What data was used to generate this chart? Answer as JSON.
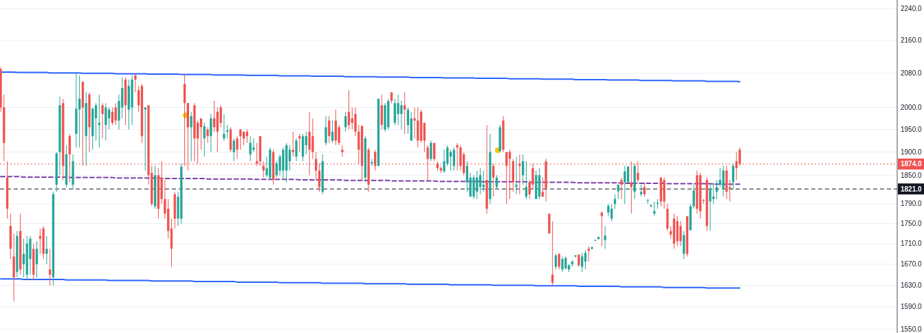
{
  "chart_data": {
    "type": "candlestick",
    "categories": [
      null,
      null,
      null,
      null,
      null,
      null,
      null,
      null,
      null,
      null,
      null,
      null,
      null,
      null,
      null,
      null,
      null,
      null,
      null,
      null,
      null,
      null,
      null,
      null,
      null,
      null,
      null,
      null,
      null,
      null,
      null,
      null,
      null,
      null,
      null,
      null,
      null,
      null,
      null,
      null,
      null,
      null,
      null,
      null,
      null,
      null,
      null,
      null,
      null,
      null,
      null,
      null,
      null,
      null,
      null,
      null,
      null,
      null,
      null,
      null,
      null,
      null,
      null,
      null,
      null,
      null,
      null,
      null,
      null,
      null,
      null,
      null,
      null,
      null,
      null,
      null,
      null,
      null,
      null,
      null,
      null,
      null,
      null,
      null,
      null,
      null,
      null,
      null,
      null,
      null,
      null,
      null,
      null,
      null,
      null,
      null,
      null,
      null,
      null,
      null,
      null,
      null,
      null,
      null,
      null,
      null,
      null,
      null,
      null,
      null,
      null,
      null,
      null,
      null,
      null,
      null,
      null,
      null,
      null,
      null,
      null,
      null,
      null,
      null,
      null,
      null,
      null,
      null,
      null,
      null,
      null,
      null,
      null,
      null,
      null,
      null,
      null,
      null,
      null,
      null,
      null,
      null,
      null,
      null,
      null,
      null,
      null,
      null,
      null,
      null,
      null,
      null,
      null,
      null,
      null,
      null,
      null,
      null,
      null,
      null,
      null,
      null,
      null,
      null,
      null,
      null,
      null,
      null,
      null,
      null,
      null,
      null,
      null,
      null,
      null,
      null,
      null,
      null,
      null,
      null,
      null,
      null,
      null,
      null,
      null,
      null,
      null,
      null,
      null,
      null,
      null,
      null,
      null,
      null,
      null,
      null,
      null,
      null,
      null,
      null,
      null,
      null,
      null,
      null,
      null,
      null,
      null,
      null,
      null,
      null,
      null,
      null,
      null,
      null,
      null,
      null,
      null,
      null,
      null,
      null,
      null,
      null,
      null,
      null,
      null,
      null
    ],
    "ohlc": [
      [
        2090,
        2095,
        1990,
        2000
      ],
      [
        2000,
        2030,
        1880,
        1920
      ],
      [
        1845,
        1880,
        1760,
        1780
      ],
      [
        1745,
        1770,
        1680,
        1700
      ],
      [
        1685,
        1730,
        1600,
        1645
      ],
      [
        1655,
        1735,
        1645,
        1725
      ],
      [
        1735,
        1770,
        1650,
        1660
      ],
      [
        1670,
        1720,
        1645,
        1690
      ],
      [
        1650,
        1725,
        1640,
        1710
      ],
      [
        1680,
        1725,
        1650,
        1720
      ],
      [
        1700,
        1710,
        1640,
        1650
      ],
      [
        1670,
        1715,
        1645,
        1700
      ],
      [
        1725,
        1740,
        1690,
        1720
      ],
      [
        1740,
        1745,
        1680,
        1690
      ],
      [
        1690,
        1725,
        1670,
        1700
      ],
      [
        1660,
        1700,
        1630,
        1650
      ],
      [
        1645,
        1815,
        1630,
        1810
      ],
      [
        1830,
        1900,
        1815,
        1897
      ],
      [
        1900,
        2025,
        1850,
        2005
      ],
      [
        2010,
        2020,
        1840,
        1870
      ],
      [
        1830,
        1915,
        1825,
        1895
      ],
      [
        1935,
        1940,
        1835,
        1895
      ],
      [
        1830,
        1895,
        1820,
        1880
      ],
      [
        1940,
        2080,
        1910,
        1997
      ],
      [
        1995,
        2075,
        1910,
        2020
      ],
      [
        2060,
        2060,
        1870,
        2000
      ],
      [
        1935,
        2035,
        1870,
        2010
      ],
      [
        2030,
        2035,
        1900,
        1955
      ],
      [
        1935,
        2000,
        1905,
        1997
      ],
      [
        1975,
        2010,
        1925,
        2005
      ],
      [
        1960,
        2030,
        1910,
        1965
      ],
      [
        2005,
        2010,
        1930,
        1985
      ],
      [
        1960,
        2010,
        1925,
        2000
      ],
      [
        1975,
        2000,
        1950,
        1995
      ],
      [
        1990,
        2000,
        1960,
        1965
      ],
      [
        2000,
        2010,
        1960,
        1970
      ],
      [
        1970,
        2030,
        1950,
        2015
      ],
      [
        2000,
        2070,
        1975,
        2045
      ],
      [
        2065,
        2070,
        1960,
        2005
      ],
      [
        1995,
        2065,
        1950,
        2050
      ],
      [
        2000,
        2075,
        1960,
        2065
      ],
      [
        2075,
        2080,
        2035,
        2065
      ],
      [
        2040,
        2050,
        1990,
        2005
      ],
      [
        2050,
        2055,
        1920,
        1935
      ],
      [
        1995,
        2000,
        1860,
        2000
      ],
      [
        2005,
        2005,
        1830,
        1850
      ],
      [
        1855,
        1870,
        1785,
        1790
      ],
      [
        1785,
        1870,
        1780,
        1850
      ],
      [
        1850,
        1865,
        1760,
        1780
      ],
      [
        1845,
        1880,
        1790,
        1800
      ],
      [
        1800,
        1840,
        1760,
        1770
      ],
      [
        1780,
        1800,
        1720,
        1735
      ],
      [
        1740,
        1760,
        1665,
        1700
      ],
      [
        1810,
        1815,
        1740,
        1760
      ],
      [
        1760,
        1815,
        1745,
        1805
      ],
      [
        1760,
        1875,
        1750,
        1868
      ],
      [
        2055,
        2078,
        1870,
        2010
      ],
      [
        2010,
        2010,
        1860,
        1955
      ],
      [
        1955,
        1990,
        1880,
        1980
      ],
      [
        2005,
        2010,
        1880,
        1930
      ],
      [
        1965,
        1970,
        1875,
        1930
      ],
      [
        1975,
        1975,
        1905,
        1955
      ],
      [
        1930,
        1965,
        1890,
        1957
      ],
      [
        1950,
        1955,
        1920,
        1935
      ],
      [
        1935,
        1985,
        1900,
        1975
      ],
      [
        1975,
        2015,
        1945,
        1955
      ],
      [
        1990,
        2000,
        1900,
        1945
      ],
      [
        2000,
        2005,
        1955,
        1965
      ],
      [
        1930,
        1985,
        1925,
        1940
      ],
      [
        1945,
        1960,
        1930,
        1948
      ],
      [
        1950,
        1955,
        1900,
        1905
      ],
      [
        1900,
        1930,
        1880,
        1925
      ],
      [
        1930,
        1935,
        1885,
        1905
      ],
      [
        1950,
        1950,
        1905,
        1935
      ],
      [
        1945,
        1945,
        1915,
        1930
      ],
      [
        1945,
        1950,
        1920,
        1935
      ],
      [
        1895,
        1935,
        1880,
        1920
      ],
      [
        1905,
        1930,
        1900,
        1910
      ],
      [
        1880,
        1920,
        1870,
        1875
      ],
      [
        1935,
        1935,
        1870,
        1880
      ],
      [
        1870,
        1880,
        1845,
        1860
      ],
      [
        1850,
        1890,
        1845,
        1865
      ],
      [
        1845,
        1910,
        1840,
        1905
      ],
      [
        1900,
        1905,
        1830,
        1840
      ],
      [
        1850,
        1880,
        1845,
        1875
      ],
      [
        1860,
        1895,
        1850,
        1890
      ],
      [
        1860,
        1910,
        1840,
        1905
      ],
      [
        1860,
        1920,
        1835,
        1915
      ],
      [
        1880,
        1915,
        1860,
        1905
      ],
      [
        1905,
        1945,
        1890,
        1900
      ],
      [
        1890,
        1930,
        1880,
        1925
      ],
      [
        1935,
        1940,
        1900,
        1930
      ],
      [
        1890,
        1940,
        1880,
        1935
      ],
      [
        1915,
        1945,
        1895,
        1935
      ],
      [
        1945,
        1990,
        1850,
        1905
      ],
      [
        1935,
        1975,
        1885,
        1900
      ],
      [
        1885,
        1900,
        1840,
        1860
      ],
      [
        1860,
        1875,
        1815,
        1825
      ],
      [
        1815,
        1895,
        1810,
        1880
      ],
      [
        1920,
        1980,
        1915,
        1955
      ],
      [
        1970,
        1980,
        1920,
        1935
      ],
      [
        1925,
        1970,
        1920,
        1945
      ],
      [
        1970,
        1995,
        1915,
        1925
      ],
      [
        1955,
        1960,
        1915,
        1920
      ],
      [
        1905,
        1915,
        1890,
        1900
      ],
      [
        1955,
        1990,
        1945,
        1980
      ],
      [
        1990,
        2040,
        1950,
        1960
      ],
      [
        1975,
        2000,
        1950,
        1965
      ],
      [
        1985,
        2000,
        1935,
        1945
      ],
      [
        1945,
        1960,
        1875,
        1905
      ],
      [
        1958,
        1958,
        1840,
        1870
      ],
      [
        1845,
        1935,
        1835,
        1930
      ],
      [
        1905,
        1910,
        1815,
        1830
      ],
      [
        1875,
        1885,
        1870,
        1878
      ],
      [
        1900,
        1905,
        1860,
        1870
      ],
      [
        1870,
        2020,
        1870,
        2020
      ],
      [
        2005,
        2030,
        1950,
        1960
      ],
      [
        1950,
        2010,
        1945,
        2005
      ],
      [
        1955,
        2020,
        1950,
        2015
      ],
      [
        2035,
        2035,
        2010,
        2015
      ],
      [
        1965,
        2020,
        1960,
        2010
      ],
      [
        1985,
        2030,
        1960,
        2010
      ],
      [
        1985,
        2015,
        1950,
        2005
      ],
      [
        2005,
        2035,
        1940,
        1995
      ],
      [
        1960,
        2000,
        1940,
        1995
      ],
      [
        1925,
        1990,
        1925,
        1975
      ],
      [
        1975,
        2000,
        1930,
        1970
      ],
      [
        1970,
        2000,
        1910,
        1925
      ],
      [
        1990,
        1995,
        1920,
        1925
      ],
      [
        1965,
        1965,
        1900,
        1925
      ],
      [
        1910,
        1915,
        1840,
        1885
      ],
      [
        1885,
        1925,
        1880,
        1920
      ],
      [
        1920,
        1920,
        1880,
        1885
      ],
      [
        1875,
        1880,
        1860,
        1865
      ],
      [
        1865,
        1870,
        1855,
        1860
      ],
      [
        1858,
        1905,
        1855,
        1880
      ],
      [
        1875,
        1915,
        1870,
        1910
      ],
      [
        1890,
        1905,
        1860,
        1900
      ],
      [
        1870,
        1910,
        1860,
        1905
      ],
      [
        1915,
        1920,
        1860,
        1910
      ],
      [
        1910,
        1915,
        1860,
        1870
      ],
      [
        1895,
        1900,
        1850,
        1855
      ],
      [
        1835,
        1880,
        1815,
        1870
      ],
      [
        1805,
        1855,
        1805,
        1845
      ],
      [
        1805,
        1850,
        1800,
        1845
      ],
      [
        1815,
        1860,
        1800,
        1845
      ],
      [
        1825,
        1865,
        1810,
        1850
      ],
      [
        1825,
        1860,
        1815,
        1830
      ],
      [
        1840,
        1960,
        1770,
        1780
      ],
      [
        1800,
        1940,
        1790,
        1900
      ],
      [
        1870,
        1875,
        1805,
        1845
      ],
      [
        1825,
        1850,
        1820,
        1845
      ],
      [
        1902,
        1960,
        1900,
        1955
      ],
      [
        1970,
        1980,
        1900,
        1905
      ],
      [
        1900,
        1900,
        1790,
        1870
      ],
      [
        1900,
        1905,
        1800,
        1885
      ],
      [
        1880,
        1885,
        1815,
        1835
      ],
      [
        1825,
        1890,
        1810,
        1830
      ],
      [
        1875,
        1895,
        1810,
        1870
      ],
      [
        1850,
        1895,
        1830,
        1880
      ],
      [
        1805,
        1880,
        1800,
        1825
      ],
      [
        1835,
        1840,
        1800,
        1810
      ],
      [
        1865,
        1875,
        1820,
        1830
      ],
      [
        1800,
        1860,
        1800,
        1850
      ],
      [
        1805,
        1865,
        1800,
        1850
      ],
      [
        1815,
        1845,
        1805,
        1805
      ],
      [
        1880,
        1885,
        1795,
        1822
      ],
      [
        1770,
        1770,
        1730,
        1730
      ],
      [
        1650,
        1755,
        1628,
        1635
      ],
      [
        1665,
        1690,
        1660,
        1687
      ],
      [
        1690,
        1690,
        1660,
        1665
      ],
      [
        1660,
        1685,
        1655,
        1680
      ],
      [
        1662,
        1685,
        1660,
        1682
      ],
      [
        1660,
        1670,
        1655,
        1668
      ],
      [
        1670,
        1678,
        1665,
        1675
      ],
      [
        1685,
        1688,
        1683,
        1687
      ],
      [
        1688,
        1690,
        1665,
        1668
      ],
      [
        1665,
        1692,
        1655,
        1685
      ],
      [
        1675,
        1697,
        1660,
        1692
      ],
      [
        1700,
        1705,
        1675,
        1696
      ],
      [
        1700,
        1704,
        1698,
        1703
      ],
      [
        1716,
        1718,
        1715,
        1717
      ],
      [
        1719,
        1724,
        1718,
        1723
      ],
      [
        1772,
        1775,
        1705,
        1765
      ],
      [
        1717,
        1745,
        1700,
        1726
      ],
      [
        1772,
        1790,
        1765,
        1786
      ],
      [
        1760,
        1790,
        1755,
        1780
      ],
      [
        1790,
        1810,
        1780,
        1800
      ],
      [
        1816,
        1830,
        1800,
        1830
      ],
      [
        1840,
        1845,
        1800,
        1830
      ],
      [
        1835,
        1870,
        1790,
        1858
      ],
      [
        1835,
        1870,
        1835,
        1868
      ],
      [
        1835,
        1880,
        1770,
        1825
      ],
      [
        1815,
        1875,
        1800,
        1870
      ],
      [
        1855,
        1880,
        1835,
        1840
      ],
      [
        1810,
        1830,
        1805,
        1815
      ],
      [
        1825,
        1835,
        1805,
        1810
      ],
      [
        1797,
        1800,
        1790,
        1798
      ],
      [
        1785,
        1790,
        1783,
        1787
      ],
      [
        1770,
        1795,
        1765,
        1775
      ],
      [
        1790,
        1800,
        1780,
        1792
      ],
      [
        1845,
        1845,
        1785,
        1795
      ],
      [
        1840,
        1845,
        1780,
        1795
      ],
      [
        1780,
        1790,
        1735,
        1740
      ],
      [
        1735,
        1745,
        1720,
        1728
      ],
      [
        1760,
        1770,
        1700,
        1710
      ],
      [
        1755,
        1765,
        1705,
        1715
      ],
      [
        1745,
        1755,
        1705,
        1715
      ],
      [
        1690,
        1735,
        1680,
        1727
      ],
      [
        1765,
        1765,
        1685,
        1690
      ],
      [
        1737,
        1790,
        1735,
        1785
      ],
      [
        1785,
        1830,
        1780,
        1818
      ],
      [
        1850,
        1860,
        1770,
        1780
      ],
      [
        1850,
        1855,
        1760,
        1775
      ],
      [
        1798,
        1800,
        1790,
        1797
      ],
      [
        1840,
        1845,
        1735,
        1745
      ],
      [
        1795,
        1830,
        1735,
        1820
      ],
      [
        1800,
        1835,
        1790,
        1805
      ],
      [
        1815,
        1840,
        1800,
        1825
      ],
      [
        1830,
        1865,
        1825,
        1840
      ],
      [
        1820,
        1870,
        1805,
        1860
      ],
      [
        1860,
        1870,
        1800,
        1815
      ],
      [
        1825,
        1840,
        1795,
        1822
      ],
      [
        1835,
        1875,
        1820,
        1870
      ],
      [
        1880,
        1900,
        1840,
        1865
      ],
      [
        1905,
        1910,
        1870,
        1874
      ]
    ],
    "colors": [
      "#ef5350",
      "#ef5350",
      "#ef5350",
      "#ef5350",
      "#ef5350",
      "#26a69a",
      "#ef5350",
      "#26a69a",
      "#26a69a",
      "#26a69a",
      "#ef5350",
      "#26a69a",
      "#ef5350",
      "#ef5350",
      "#26a69a",
      "#ef5350",
      "#26a69a",
      "#26a69a",
      "#26a69a",
      "#ef5350",
      "#26a69a",
      "#ef5350",
      "#26a69a",
      "#26a69a",
      "#26a69a",
      "#ef5350",
      "#26a69a",
      "#ef5350",
      "#26a69a",
      "#26a69a",
      "#26a69a",
      "#ef5350",
      "#26a69a",
      "#26a69a",
      "#ef5350",
      "#ef5350",
      "#26a69a",
      "#26a69a",
      "#ef5350",
      "#26a69a",
      "#26a69a",
      "#ef5350",
      "#ef5350",
      "#ef5350",
      "#26a69a",
      "#ef5350",
      "#ef5350",
      "#26a69a",
      "#ef5350",
      "#ef5350",
      "#ef5350",
      "#ef5350",
      "#ef5350",
      "#ef5350",
      "#26a69a",
      "#26a69a",
      "#ef5350",
      "#ef5350",
      "#26a69a",
      "#ef5350",
      "#ef5350",
      "#ef5350",
      "#26a69a",
      "#ef5350",
      "#26a69a",
      "#ef5350",
      "#ef5350",
      "#ef5350",
      "#26a69a",
      "#26a69a",
      "#ef5350",
      "#26a69a",
      "#ef5350",
      "#ef5350",
      "#ef5350",
      "#ef5350",
      "#26a69a",
      "#26a69a",
      "#ef5350",
      "#ef5350",
      "#ef5350",
      "#26a69a",
      "#26a69a",
      "#ef5350",
      "#26a69a",
      "#26a69a",
      "#26a69a",
      "#26a69a",
      "#26a69a",
      "#ef5350",
      "#26a69a",
      "#ef5350",
      "#26a69a",
      "#26a69a",
      "#ef5350",
      "#ef5350",
      "#ef5350",
      "#ef5350",
      "#26a69a",
      "#26a69a",
      "#ef5350",
      "#26a69a",
      "#ef5350",
      "#ef5350",
      "#ef5350",
      "#26a69a",
      "#ef5350",
      "#ef5350",
      "#ef5350",
      "#ef5350",
      "#ef5350",
      "#26a69a",
      "#ef5350",
      "#26a69a",
      "#ef5350",
      "#26a69a",
      "#ef5350",
      "#26a69a",
      "#26a69a",
      "#ef5350",
      "#26a69a",
      "#26a69a",
      "#26a69a",
      "#ef5350",
      "#26a69a",
      "#26a69a",
      "#ef5350",
      "#ef5350",
      "#ef5350",
      "#ef5350",
      "#ef5350",
      "#26a69a",
      "#ef5350",
      "#ef5350",
      "#ef5350",
      "#26a69a",
      "#26a69a",
      "#26a69a",
      "#26a69a",
      "#ef5350",
      "#ef5350",
      "#ef5350",
      "#26a69a",
      "#26a69a",
      "#26a69a",
      "#26a69a",
      "#26a69a",
      "#26a69a",
      "#ef5350",
      "#26a69a",
      "#ef5350",
      "#26a69a",
      "#26a69a",
      "#ef5350",
      "#ef5350",
      "#ef5350",
      "#ef5350",
      "#26a69a",
      "#ef5350",
      "#26a69a",
      "#26a69a",
      "#ef5350",
      "#ef5350",
      "#26a69a",
      "#26a69a",
      "#ef5350",
      "#ef5350",
      "#ef5350",
      "#ef5350",
      "#26a69a",
      "#ef5350",
      "#26a69a",
      "#26a69a",
      "#26a69a",
      "#26a69a",
      "#26a69a",
      "#ef5350",
      "#26a69a",
      "#26a69a",
      "#ef5350",
      "#26a69a",
      "#26a69a",
      "#26a69a",
      "#ef5350",
      "#26a69a",
      "#26a69a",
      "#26a69a",
      "#26a69a",
      "#26a69a",
      "#ef5350",
      "#26a69a",
      "#26a69a",
      "#ef5350",
      "#26a69a",
      "#ef5350",
      "#26a69a",
      "#ef5350",
      "#26a69a",
      "#26a69a",
      "#26a69a",
      "#26a69a",
      "#ef5350",
      "#ef5350",
      "#ef5350",
      "#ef5350",
      "#ef5350",
      "#ef5350",
      "#ef5350",
      "#26a69a",
      "#ef5350",
      "#26a69a",
      "#26a69a",
      "#ef5350",
      "#ef5350",
      "#ef5350",
      "#ef5350",
      "#26a69a",
      "#26a69a",
      "#26a69a",
      "#26a69a",
      "#26a69a",
      "#ef5350",
      "#ef5350",
      "#26a69a",
      "#ef5350",
      "#ef5350"
    ],
    "series": [
      {
        "type": "line",
        "color": "#2962ff",
        "values": [
          2083,
          2083,
          2083,
          2083,
          2083,
          2082,
          2082,
          2082,
          2082,
          2082,
          2082,
          2082,
          2082,
          2082,
          2082,
          2081,
          2081,
          2081,
          2081,
          2081,
          2081,
          2081,
          2081,
          2081,
          2081,
          2080,
          2080,
          2080,
          2080,
          2080,
          2080,
          2080,
          2080,
          2080,
          2080,
          2079,
          2079,
          2079,
          2079,
          2079,
          2079,
          2079,
          2079,
          2079,
          2079,
          2078,
          2078,
          2078,
          2078,
          2078,
          2078,
          2078,
          2078,
          2078,
          2078,
          2077,
          2077,
          2077,
          2077,
          2077,
          2077,
          2077,
          2077,
          2077,
          2077,
          2076,
          2076,
          2076,
          2076,
          2076,
          2076,
          2076,
          2076,
          2076,
          2076,
          2075,
          2075,
          2075,
          2075,
          2075,
          2075,
          2075,
          2075,
          2075,
          2075,
          2074,
          2074,
          2074,
          2074,
          2074,
          2074,
          2074,
          2074,
          2074,
          2074,
          2073,
          2073,
          2073,
          2073,
          2073,
          2073,
          2073,
          2073,
          2073,
          2073,
          2072,
          2072,
          2072,
          2072,
          2072,
          2072,
          2072,
          2072,
          2072,
          2072,
          2071,
          2071,
          2071,
          2071,
          2071,
          2071,
          2071,
          2071,
          2071,
          2071,
          2070,
          2070,
          2070,
          2070,
          2070,
          2070,
          2070,
          2070,
          2070,
          2070,
          2069,
          2069,
          2069,
          2069,
          2069,
          2069,
          2069,
          2069,
          2069,
          2069,
          2068,
          2068,
          2068,
          2068,
          2068,
          2068,
          2068,
          2068,
          2068,
          2068,
          2067,
          2067,
          2067,
          2067,
          2067,
          2067,
          2067,
          2067,
          2067,
          2067,
          2066,
          2066,
          2066,
          2066,
          2066,
          2066,
          2066,
          2066,
          2066,
          2066,
          2065,
          2065,
          2065,
          2065,
          2065,
          2065,
          2065,
          2065,
          2065,
          2065,
          2064,
          2064,
          2064,
          2064,
          2064,
          2064,
          2064,
          2064,
          2064,
          2064,
          2063,
          2063,
          2063,
          2063,
          2063,
          2063,
          2063,
          2063,
          2063,
          2063,
          2062,
          2062,
          2062,
          2062,
          2062,
          2062,
          2062,
          2062,
          2062,
          2062,
          2061,
          2061,
          2061,
          2061,
          2061,
          2061,
          2061,
          2061,
          2061,
          2061,
          2060
        ]
      },
      {
        "type": "line",
        "color": "#2962ff",
        "values": [
          1642,
          1642,
          1642,
          1642,
          1642,
          1642,
          1642,
          1641,
          1641,
          1641,
          1641,
          1641,
          1641,
          1641,
          1641,
          1641,
          1641,
          1641,
          1641,
          1641,
          1640,
          1640,
          1640,
          1640,
          1640,
          1640,
          1640,
          1640,
          1640,
          1640,
          1640,
          1640,
          1640,
          1639,
          1639,
          1639,
          1639,
          1639,
          1639,
          1639,
          1639,
          1639,
          1639,
          1639,
          1639,
          1639,
          1638,
          1638,
          1638,
          1638,
          1638,
          1638,
          1638,
          1638,
          1638,
          1638,
          1638,
          1638,
          1638,
          1637,
          1637,
          1637,
          1637,
          1637,
          1637,
          1637,
          1637,
          1637,
          1637,
          1637,
          1637,
          1637,
          1636,
          1636,
          1636,
          1636,
          1636,
          1636,
          1636,
          1636,
          1636,
          1636,
          1636,
          1636,
          1636,
          1635,
          1635,
          1635,
          1635,
          1635,
          1635,
          1635,
          1635,
          1635,
          1635,
          1635,
          1635,
          1635,
          1634,
          1634,
          1634,
          1634,
          1634,
          1634,
          1634,
          1634,
          1634,
          1634,
          1634,
          1634,
          1634,
          1633,
          1633,
          1633,
          1633,
          1633,
          1633,
          1633,
          1633,
          1633,
          1633,
          1633,
          1633,
          1633,
          1632,
          1632,
          1632,
          1632,
          1632,
          1632,
          1632,
          1632,
          1632,
          1632,
          1632,
          1632,
          1632,
          1631,
          1631,
          1631,
          1631,
          1631,
          1631,
          1631,
          1631,
          1631,
          1631,
          1631,
          1631,
          1631,
          1630,
          1630,
          1630,
          1630,
          1630,
          1630,
          1630,
          1630,
          1630,
          1630,
          1630,
          1630,
          1630,
          1629,
          1629,
          1629,
          1629,
          1629,
          1629,
          1629,
          1629,
          1629,
          1629,
          1629,
          1629,
          1629,
          1628,
          1628,
          1628,
          1628,
          1628,
          1628,
          1628,
          1628,
          1628,
          1628,
          1628,
          1628,
          1628,
          1627,
          1627,
          1627,
          1627,
          1627,
          1627,
          1627,
          1627,
          1627,
          1627,
          1627,
          1627,
          1627,
          1626,
          1626,
          1626,
          1626,
          1626,
          1626,
          1626,
          1626,
          1626,
          1626,
          1626,
          1626,
          1626,
          1625,
          1625,
          1625,
          1625,
          1625,
          1625,
          1625,
          1625,
          1625,
          1625,
          1625
        ]
      },
      {
        "type": "line",
        "color": "#7b3fa8",
        "line_style": "dashed",
        "values": [
          1847,
          1847,
          1847,
          1847,
          1847,
          1847,
          1847,
          1846,
          1846,
          1846,
          1846,
          1846,
          1846,
          1846,
          1846,
          1846,
          1846,
          1846,
          1846,
          1846,
          1846,
          1845,
          1845,
          1845,
          1845,
          1845,
          1845,
          1845,
          1845,
          1845,
          1845,
          1845,
          1845,
          1845,
          1845,
          1844,
          1844,
          1844,
          1844,
          1844,
          1844,
          1844,
          1844,
          1844,
          1844,
          1844,
          1844,
          1844,
          1844,
          1843,
          1843,
          1843,
          1843,
          1843,
          1843,
          1843,
          1843,
          1843,
          1843,
          1843,
          1843,
          1843,
          1843,
          1842,
          1842,
          1842,
          1842,
          1842,
          1842,
          1842,
          1842,
          1842,
          1842,
          1842,
          1842,
          1842,
          1842,
          1841,
          1841,
          1841,
          1841,
          1841,
          1841,
          1841,
          1841,
          1841,
          1841,
          1841,
          1841,
          1841,
          1841,
          1840,
          1840,
          1840,
          1840,
          1840,
          1840,
          1840,
          1840,
          1840,
          1840,
          1840,
          1840,
          1840,
          1840,
          1839,
          1839,
          1839,
          1839,
          1839,
          1839,
          1839,
          1839,
          1839,
          1839,
          1839,
          1839,
          1839,
          1839,
          1838,
          1838,
          1838,
          1838,
          1838,
          1838,
          1838,
          1838,
          1838,
          1838,
          1838,
          1838,
          1838,
          1838,
          1837,
          1837,
          1837,
          1837,
          1837,
          1837,
          1837,
          1837,
          1837,
          1837,
          1837,
          1837,
          1837,
          1837,
          1836,
          1836,
          1836,
          1836,
          1836,
          1836,
          1836,
          1836,
          1836,
          1836,
          1836,
          1836,
          1836,
          1836,
          1835,
          1835,
          1835,
          1835,
          1835,
          1835,
          1835,
          1835,
          1835,
          1835,
          1835,
          1835,
          1835,
          1835,
          1834,
          1834,
          1834,
          1834,
          1834,
          1834,
          1834,
          1834,
          1834,
          1834,
          1834,
          1834,
          1834,
          1834,
          1833,
          1833,
          1833,
          1833,
          1833,
          1833,
          1833,
          1833,
          1833,
          1833,
          1833,
          1833,
          1833,
          1833,
          1832,
          1832,
          1832,
          1832,
          1832,
          1832,
          1832,
          1832,
          1832,
          1832,
          1832,
          1832,
          1832,
          1832,
          1831,
          1831,
          1831,
          1831,
          1831,
          1831,
          1831,
          1831,
          1831
        ]
      }
    ],
    "ref_lines": [
      {
        "axis": "y",
        "value": 1874,
        "label": "1874.0",
        "color": "#ef5350",
        "line_style": "dotted"
      },
      {
        "axis": "y",
        "value": 1821,
        "label": "1821.0",
        "color": "#131722",
        "line_style": "dashed"
      }
    ],
    "ylim": [
      1543,
      2263
    ],
    "yticks": [
      {
        "value": 1550,
        "label": "1550.0"
      },
      {
        "value": 1590,
        "label": "1590.0"
      },
      {
        "value": 1630,
        "label": "1630.0"
      },
      {
        "value": 1670,
        "label": "1670.0"
      },
      {
        "value": 1710,
        "label": "1710.0"
      },
      {
        "value": 1750,
        "label": "1750.0"
      },
      {
        "value": 1790,
        "label": "1790.0"
      },
      {
        "value": 1850,
        "label": "1850.0"
      },
      {
        "value": 1900,
        "label": "1900.0"
      },
      {
        "value": 1950,
        "label": "1950.0"
      },
      {
        "value": 2000,
        "label": "2000.0"
      },
      {
        "value": 2080,
        "label": "2080.0"
      },
      {
        "value": 2160,
        "label": "2160.0"
      },
      {
        "value": 2240,
        "label": "2240.0"
      }
    ],
    "log": true,
    "grid": "y"
  }
}
